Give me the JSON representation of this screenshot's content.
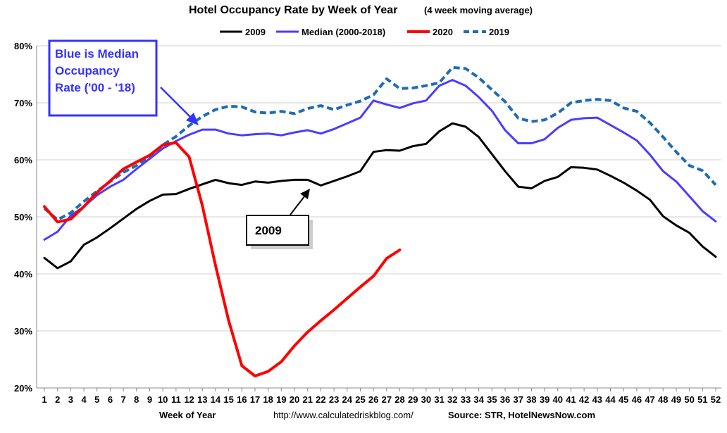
{
  "chart_data": {
    "type": "line",
    "title": "Hotel Occupancy Rate by  Week of Year",
    "subtitle": "(4 week moving average)",
    "xlabel": "Week of Year",
    "ylabel": "",
    "ylim": [
      20,
      80
    ],
    "y_ticks": [
      "20%",
      "30%",
      "40%",
      "50%",
      "60%",
      "70%",
      "80%"
    ],
    "y_tick_values": [
      20,
      30,
      40,
      50,
      60,
      70,
      80
    ],
    "x": [
      1,
      2,
      3,
      4,
      5,
      6,
      7,
      8,
      9,
      10,
      11,
      12,
      13,
      14,
      15,
      16,
      17,
      18,
      19,
      20,
      21,
      22,
      23,
      24,
      25,
      26,
      27,
      28,
      29,
      30,
      31,
      32,
      33,
      34,
      35,
      36,
      37,
      38,
      39,
      40,
      41,
      42,
      43,
      44,
      45,
      46,
      47,
      48,
      49,
      50,
      51,
      52
    ],
    "x_tick_labels": [
      "1",
      "2",
      "3",
      "4",
      "5",
      "6",
      "7",
      "8",
      "9",
      "10",
      "11",
      "12",
      "13",
      "14",
      "15",
      "16",
      "17",
      "18",
      "19",
      "20",
      "21",
      "22",
      "23",
      "24",
      "25",
      "26",
      "27",
      "28",
      "29",
      "30",
      "31",
      "32",
      "33",
      "34",
      "35",
      "36",
      "37",
      "38",
      "39",
      "40",
      "41",
      "42",
      "43",
      "44",
      "45",
      "46",
      "47",
      "48",
      "49",
      "50",
      "51",
      "52"
    ],
    "grid": "horizontal",
    "legend_position": "top",
    "series": [
      {
        "name": "2009",
        "color": "#000000",
        "style": "solid",
        "values": [
          42.8,
          41.0,
          42.2,
          45.1,
          46.4,
          48.0,
          49.7,
          51.4,
          52.8,
          53.9,
          54.0,
          54.9,
          55.7,
          56.5,
          55.9,
          55.6,
          56.2,
          56.0,
          56.3,
          56.5,
          56.5,
          55.5,
          56.3,
          57.1,
          58.0,
          61.4,
          61.7,
          61.6,
          62.4,
          62.8,
          65.0,
          66.4,
          65.8,
          64.0,
          61.0,
          58.0,
          55.3,
          55.0,
          56.3,
          57.0,
          58.7,
          58.6,
          58.3,
          57.2,
          56.0,
          54.6,
          53.0,
          50.1,
          48.5,
          47.2,
          44.8,
          43.0
        ]
      },
      {
        "name": "Median (2000-2018)",
        "color": "#4a3dff",
        "style": "solid",
        "values": [
          46.0,
          47.4,
          50.2,
          51.8,
          53.8,
          55.3,
          56.5,
          58.4,
          60.2,
          62.0,
          63.3,
          64.4,
          65.3,
          65.3,
          64.6,
          64.3,
          64.5,
          64.6,
          64.3,
          64.8,
          65.2,
          64.6,
          65.4,
          66.4,
          67.4,
          70.4,
          69.7,
          69.1,
          69.9,
          70.4,
          73.0,
          74.0,
          73.0,
          71.0,
          68.6,
          65.2,
          62.9,
          62.9,
          63.6,
          65.6,
          67.0,
          67.3,
          67.4,
          66.1,
          64.8,
          63.4,
          60.9,
          58.0,
          56.2,
          53.6,
          51.0,
          49.2
        ]
      },
      {
        "name": "2020",
        "color": "#ff0000",
        "style": "solid",
        "values": [
          51.8,
          49.1,
          49.6,
          51.8,
          54.3,
          56.3,
          58.4,
          59.6,
          60.8,
          62.6,
          63.0,
          60.5,
          52.0,
          41.5,
          31.8,
          23.9,
          22.1,
          22.9,
          24.6,
          27.4,
          29.8,
          31.8,
          33.7,
          35.7,
          37.7,
          39.6,
          42.7,
          44.2,
          null,
          null,
          null,
          null,
          null,
          null,
          null,
          null,
          null,
          null,
          null,
          null,
          null,
          null,
          null,
          null,
          null,
          null,
          null,
          null,
          null,
          null,
          null,
          null
        ]
      },
      {
        "name": "2019",
        "color": "#1f6cb4",
        "style": "dashed",
        "values": [
          51.5,
          49.5,
          50.7,
          52.7,
          54.5,
          56.2,
          57.8,
          59.0,
          60.6,
          62.6,
          64.1,
          66.0,
          67.6,
          68.8,
          69.4,
          69.3,
          68.4,
          68.2,
          68.5,
          68.1,
          69.0,
          69.5,
          68.8,
          69.6,
          70.3,
          71.4,
          74.2,
          72.5,
          72.6,
          73.0,
          73.5,
          76.2,
          76.0,
          74.4,
          72.3,
          70.2,
          67.3,
          66.7,
          67.0,
          68.2,
          70.0,
          70.4,
          70.6,
          70.4,
          69.1,
          68.5,
          66.5,
          64.0,
          61.4,
          59.0,
          58.1,
          55.6
        ]
      }
    ],
    "annotations": {
      "blue_box_lines": [
        "Blue is Median",
        "Occupancy",
        "Rate ('00 - '18)"
      ],
      "black_box_label": "2009"
    },
    "footer": {
      "xlabel": "Week of Year",
      "url": "http://www.calculatedriskblog.com/",
      "source": "Source: STR, HotelNewsNow.com"
    }
  }
}
